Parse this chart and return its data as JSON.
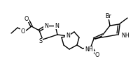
{
  "bg_color": "#ffffff",
  "line_color": "#000000",
  "line_width": 1.0,
  "font_size": 5.8,
  "figsize": [
    2.01,
    1.01
  ],
  "dpi": 100,
  "xlim": [
    0,
    201
  ],
  "ylim": [
    0,
    101
  ]
}
